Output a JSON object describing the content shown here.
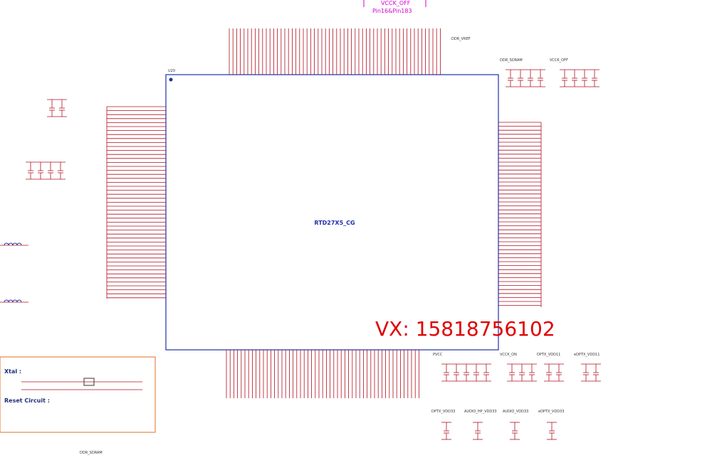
{
  "chip": {
    "ref": "U20",
    "name": "RTD27X5_CG"
  },
  "watermark": "VX:  15818756102",
  "top_note": {
    "net": "VCCK_OFF",
    "pins": "Pin16&Pin183"
  },
  "sections": {
    "xtal": "Xtal :",
    "reset": "Reset Circuit :"
  },
  "power_labels": [
    "DDR_SDRAM",
    "VCCK_OFF",
    "PVCC",
    "VCCK_ON",
    "DPTX_VDD11",
    "eDPTX_VDD11",
    "DPTX_VDD33",
    "AUDIO_HP_VDD33",
    "AUDIO_VDD33",
    "eDPTX_VDD33",
    "DDR_VREF",
    "DDR_SDRAM"
  ]
}
